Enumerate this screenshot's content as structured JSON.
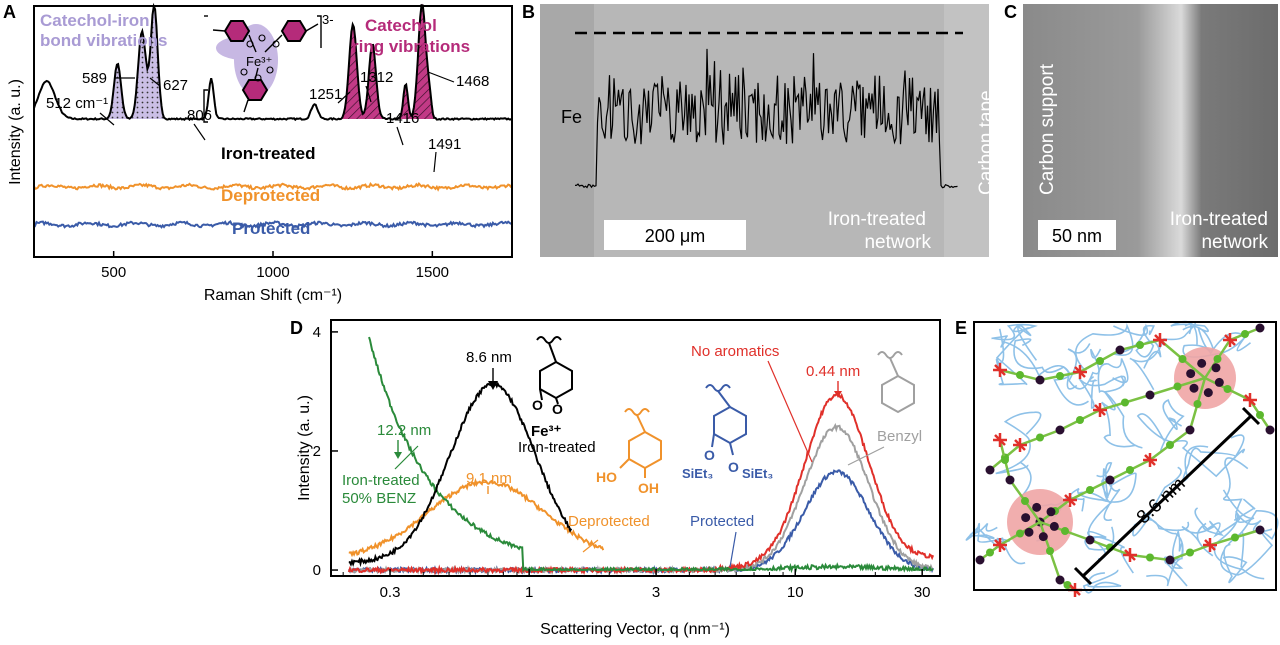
{
  "figure": {
    "panel_letters": [
      "A",
      "B",
      "C",
      "D",
      "E"
    ]
  },
  "chart_data": [
    {
      "panel": "A",
      "type": "line",
      "xlabel": "Raman Shift (cm⁻¹)",
      "ylabel": "Intensity (a. u.)",
      "xlim": [
        250,
        1750
      ],
      "x_ticks": [
        500,
        1000,
        1500
      ],
      "grid": false,
      "series": [
        {
          "name": "Iron-treated",
          "color": "#000000",
          "baseline": 0.55,
          "peaks": [
            {
              "x": 290,
              "h": 0.15,
              "w": 26
            },
            {
              "x": 512,
              "h": 0.22,
              "w": 11
            },
            {
              "x": 589,
              "h": 0.35,
              "w": 12
            },
            {
              "x": 627,
              "h": 0.45,
              "w": 11
            },
            {
              "x": 806,
              "h": 0.16,
              "w": 8
            },
            {
              "x": 1130,
              "h": 0.06,
              "w": 10
            },
            {
              "x": 1251,
              "h": 0.38,
              "w": 12
            },
            {
              "x": 1312,
              "h": 0.3,
              "w": 11
            },
            {
              "x": 1416,
              "h": 0.14,
              "w": 7
            },
            {
              "x": 1468,
              "h": 0.46,
              "w": 12
            },
            {
              "x": 1491,
              "h": 0.07,
              "w": 6
            }
          ]
        },
        {
          "name": "Deprotected",
          "color": "#f0922b",
          "baseline": 0.28
        },
        {
          "name": "Protected",
          "color": "#3a5ba8",
          "baseline": 0.13
        }
      ],
      "shaded_regions": [
        {
          "label": "Catechol-iron bond vibrations",
          "range": [
            480,
            660
          ],
          "color": "#a99bd4"
        },
        {
          "label": "Catechol ring vibrations",
          "range": [
            1215,
            1510
          ],
          "color": "#b52b7a"
        }
      ],
      "peak_labels": [
        "512 cm⁻¹",
        "589",
        "627",
        "806",
        "1251",
        "1312",
        "1416",
        "1468",
        "1491"
      ],
      "annotations": {
        "iron_bond": [
          "Catechol-iron",
          "bond vibrations"
        ],
        "ring": [
          "Catechol",
          "ring vibrations"
        ],
        "complex_center": "Fe³⁺",
        "complex_charge": "3-"
      }
    },
    {
      "panel": "D",
      "type": "line",
      "xlabel": "Scattering Vector, q (nm⁻¹)",
      "ylabel": "Intensity (a. u.)",
      "xscale": "log",
      "xlim": [
        0.18,
        35
      ],
      "ylim": [
        -0.1,
        4.2
      ],
      "x_ticks": [
        "0.3",
        "1",
        "3",
        "10",
        "30"
      ],
      "y_ticks": [
        0,
        2,
        4
      ],
      "grid": false,
      "series": [
        {
          "name": "Iron-treated 50% BENZ",
          "color": "#2a8a3a",
          "peak_q": 0.52,
          "annotation": "12.2 nm"
        },
        {
          "name": "Iron-treated",
          "color": "#000000",
          "peak_q": 0.73,
          "peak_y": 3.0,
          "annotation": "8.6 nm"
        },
        {
          "name": "Deprotected",
          "color": "#f0922b",
          "peak_q": 0.69,
          "peak_y": 1.3,
          "annotation": "9.1 nm"
        },
        {
          "name": "No aromatics",
          "color": "#e0302a",
          "peak_q": 14.3,
          "peak_y": 2.85,
          "annotation": "0.44 nm"
        },
        {
          "name": "Benzyl",
          "color": "#a0a0a0",
          "peak_q": 14.3,
          "peak_y": 2.4
        },
        {
          "name": "Protected",
          "color": "#3a5ba8",
          "peak_q": 14.3,
          "peak_y": 1.7
        }
      ],
      "legend": [
        {
          "lines": [
            "Iron-treated",
            "50% BENZ"
          ],
          "color": "#2a8a3a"
        },
        {
          "lines": [
            "Iron-treated"
          ],
          "color": "#000000"
        },
        {
          "lines": [
            "Deprotected"
          ],
          "color": "#f0922b"
        },
        {
          "lines": [
            "Protected"
          ],
          "color": "#3a5ba8"
        },
        {
          "lines": [
            "No aromatics"
          ],
          "color": "#e0302a"
        },
        {
          "lines": [
            "Benzyl"
          ],
          "color": "#a0a0a0"
        }
      ],
      "peak_labels": {
        "iron": "8.6 nm",
        "benz": "12.2 nm",
        "deprot": "9.1 nm",
        "arom": "0.44 nm"
      },
      "structure_labels": {
        "fe": "Fe³⁺",
        "ho": "HO",
        "oh": "OH",
        "si": "SiEt₃"
      }
    }
  ],
  "panelB": {
    "label_fe": "Fe",
    "label_tape": "Carbon tape",
    "label_network": [
      "Iron-treated",
      "network"
    ],
    "scalebar": "200 μm"
  },
  "panelC": {
    "label_support": "Carbon support",
    "label_network": [
      "Iron-treated",
      "network"
    ],
    "scalebar": "50 nm"
  },
  "panelE": {
    "distance_label": "8.6 nm"
  }
}
